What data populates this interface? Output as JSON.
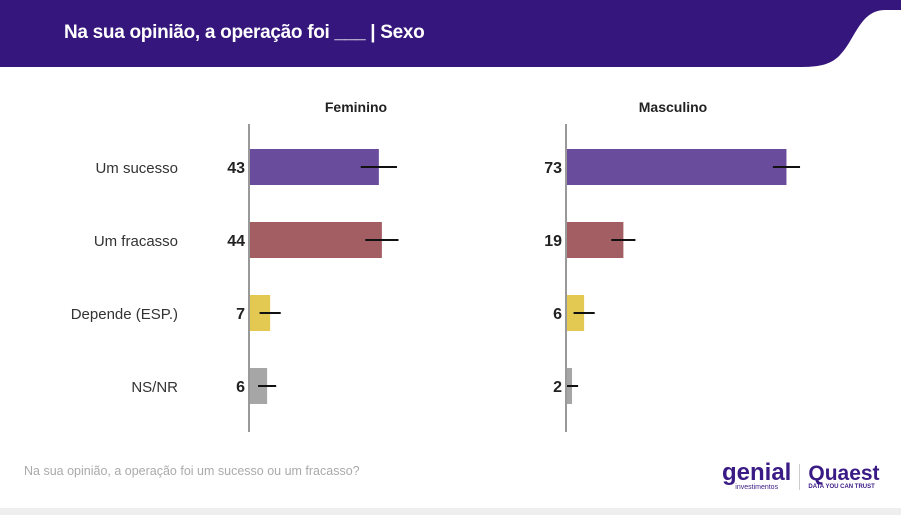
{
  "header": {
    "title": "Na sua opinião, a operação foi ___ | Sexo"
  },
  "footer": {
    "note": "Na sua opinião, a operação foi um sucesso ou um fracasso?"
  },
  "logos": {
    "genial": "genial",
    "genial_sub": "investimentos",
    "quaest": "Quaest",
    "quaest_sub": "DATA YOU CAN TRUST"
  },
  "chart_data": {
    "type": "bar",
    "orientation": "horizontal",
    "categories": [
      "Um sucesso",
      "Um fracasso",
      "Depende (ESP.)",
      "NS/NR"
    ],
    "colors": [
      "#6a4c9c",
      "#a35e64",
      "#e3c852",
      "#a6a6a6"
    ],
    "panels": [
      {
        "title": "Feminino",
        "values": [
          43,
          44,
          7,
          6
        ],
        "error": [
          6,
          5.5,
          3.5,
          3
        ]
      },
      {
        "title": "Masculino",
        "values": [
          73,
          19,
          6,
          2
        ],
        "error": [
          4.5,
          4,
          3.5,
          2
        ]
      }
    ],
    "xlim": [
      0,
      100
    ]
  }
}
